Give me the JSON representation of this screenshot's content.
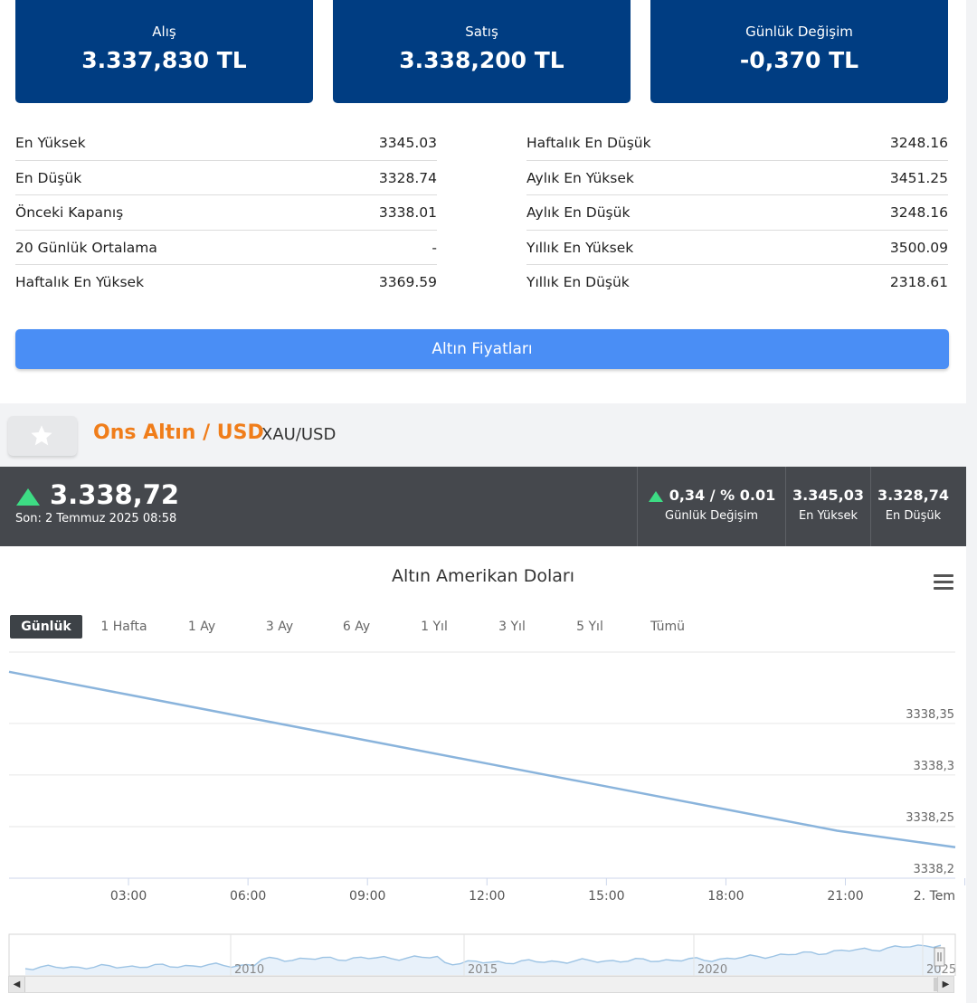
{
  "cards": [
    {
      "label": "Alış",
      "value": "3.337,830 TL"
    },
    {
      "label": "Satış",
      "value": "3.338,200 TL"
    },
    {
      "label": "Günlük Değişim",
      "value": "-0,370 TL"
    }
  ],
  "stats_left": [
    {
      "label": "En Yüksek",
      "value": "3345.03"
    },
    {
      "label": "En Düşük",
      "value": "3328.74"
    },
    {
      "label": "Önceki Kapanış",
      "value": "3338.01"
    },
    {
      "label": "20 Günlük Ortalama",
      "value": "-"
    },
    {
      "label": "Haftalık En Yüksek",
      "value": "3369.59"
    }
  ],
  "stats_right": [
    {
      "label": "Haftalık En Düşük",
      "value": "3248.16"
    },
    {
      "label": "Aylık En Yüksek",
      "value": "3451.25"
    },
    {
      "label": "Aylık En Düşük",
      "value": "3248.16"
    },
    {
      "label": "Yıllık En Yüksek",
      "value": "3500.09"
    },
    {
      "label": "Yıllık En Düşük",
      "value": "2318.61"
    }
  ],
  "gold_prices_button": "Altın Fiyatları",
  "instrument": {
    "name": "Ons Altın / USD",
    "code": "XAU/USD"
  },
  "quote": {
    "price": "3.338,72",
    "last_update": "Son: 2 Temmuz 2025 08:58",
    "change": "0,34 / % 0.01",
    "change_label": "Günlük Değişim",
    "high": "3.345,03",
    "high_label": "En Yüksek",
    "low": "3.328,74",
    "low_label": "En Düşük"
  },
  "chart": {
    "title": "Altın Amerikan Doları",
    "ranges": [
      "Günlük",
      "1 Hafta",
      "1 Ay",
      "3 Ay",
      "6 Ay",
      "1 Yıl",
      "3 Yıl",
      "5 Yıl",
      "Tümü"
    ],
    "active_range": "Günlük"
  },
  "colors": {
    "card_bg": "#003d82",
    "button": "#4a8ef5",
    "accent_orange": "#f07d1a",
    "up_green": "#3ddc84",
    "line": "#8ab4dc"
  },
  "chart_data": {
    "type": "line",
    "x": [
      "00:00",
      "03:00",
      "06:00",
      "09:00",
      "12:00",
      "15:00",
      "18:00",
      "21:00",
      "2. Tem"
    ],
    "series": [
      {
        "values": [
          3338.4,
          3338.378,
          3338.356,
          3338.334,
          3338.312,
          3338.29,
          3338.268,
          3338.246,
          3338.23
        ]
      }
    ],
    "xticks": [
      "03:00",
      "06:00",
      "09:00",
      "12:00",
      "15:00",
      "18:00",
      "21:00",
      "2. Tem"
    ],
    "yticks": [
      "3338,35",
      "3338,3",
      "3338,25",
      "3338,2"
    ],
    "ylim": [
      3338.2,
      3338.42
    ],
    "grid": true,
    "navigator": {
      "labels": [
        "2010",
        "2015",
        "2020",
        "2025"
      ]
    }
  }
}
